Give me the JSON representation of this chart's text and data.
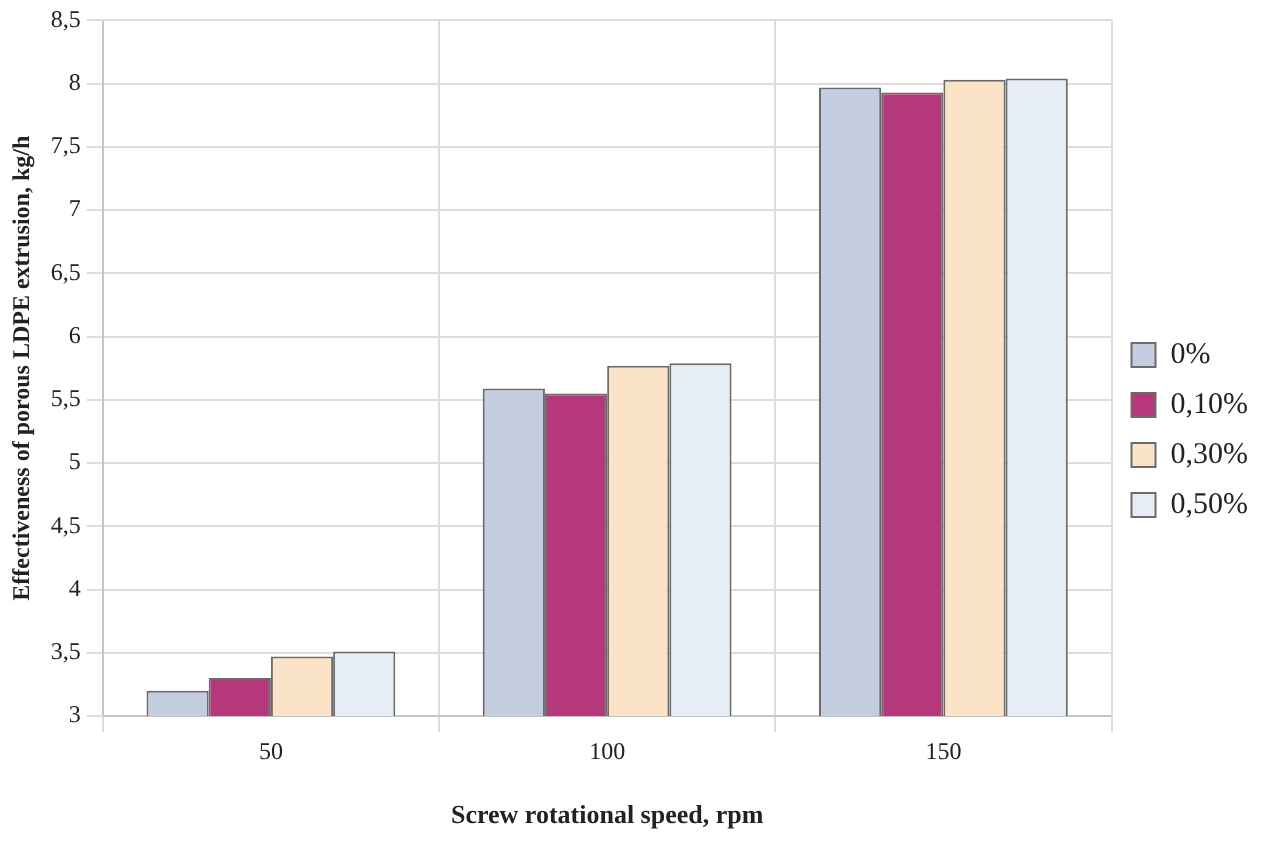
{
  "chart_data": {
    "type": "bar",
    "xlabel": "Screw rotational speed, rpm",
    "ylabel": "Effectiveness of porous LDPE extrusion, kg/h",
    "categories": [
      "50",
      "100",
      "150"
    ],
    "series": [
      {
        "name": "0%",
        "color": "#c5cde0",
        "values": [
          3.2,
          5.59,
          7.97
        ]
      },
      {
        "name": "0,10%",
        "color": "#b5397a",
        "values": [
          3.3,
          5.55,
          7.93
        ]
      },
      {
        "name": "0,30%",
        "color": "#fae3c6",
        "values": [
          3.47,
          5.77,
          8.03
        ]
      },
      {
        "name": "0,50%",
        "color": "#e6edf6",
        "values": [
          3.51,
          5.79,
          8.04
        ]
      }
    ],
    "ylim": [
      3,
      8.5
    ],
    "yticks": [
      3,
      {
        "value": 3.5,
        "label": "3,5"
      },
      4,
      {
        "value": 4.5,
        "label": "4,5"
      },
      5,
      {
        "value": 5.5,
        "label": "5,5"
      },
      6,
      {
        "value": 6.5,
        "label": "6,5"
      },
      7,
      {
        "value": 7.5,
        "label": "7,5"
      },
      8,
      {
        "value": 8.5,
        "label": "8,5"
      }
    ],
    "grid": true,
    "legend": "right"
  }
}
